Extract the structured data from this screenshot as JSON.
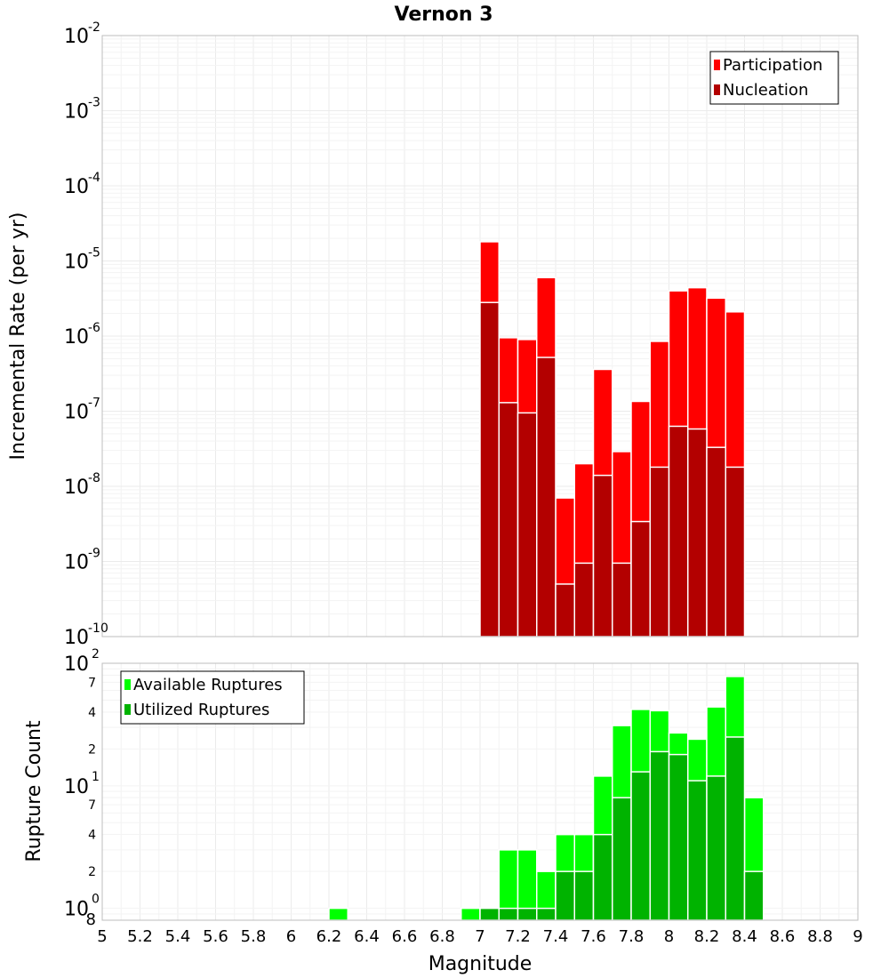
{
  "chart_data": [
    {
      "type": "bar",
      "title": "Vernon 3",
      "ylabel": "Incremental Rate (per yr)",
      "xlabel": "",
      "yscale": "log",
      "ylim": [
        1e-10,
        0.01
      ],
      "xlim": [
        5,
        9
      ],
      "bin_width": 0.1,
      "y_tick_exponents": [
        -10,
        -9,
        -8,
        -7,
        -6,
        -5,
        -4,
        -3,
        -2
      ],
      "y_tick_base": "10",
      "legend": {
        "location": "top-right",
        "entries": [
          "Participation",
          "Nucleation"
        ]
      },
      "series": [
        {
          "name": "Participation",
          "color": "#ff0000",
          "x": [
            7.05,
            7.15,
            7.25,
            7.35,
            7.45,
            7.55,
            7.65,
            7.75,
            7.85,
            7.95,
            8.05,
            8.15,
            8.25,
            8.35
          ],
          "values": [
            1.8e-05,
            9.5e-07,
            9e-07,
            6e-06,
            7e-09,
            2e-08,
            3.6e-07,
            2.9e-08,
            1.35e-07,
            8.5e-07,
            4e-06,
            4.4e-06,
            3.2e-06,
            2.1e-06
          ]
        },
        {
          "name": "Nucleation",
          "color": "#b30000",
          "x": [
            7.05,
            7.15,
            7.25,
            7.35,
            7.45,
            7.55,
            7.65,
            7.75,
            7.85,
            7.95,
            8.05,
            8.15,
            8.25,
            8.35
          ],
          "values": [
            2.8e-06,
            1.3e-07,
            9.5e-08,
            5.2e-07,
            5e-10,
            9.5e-10,
            1.4e-08,
            9.5e-10,
            3.4e-09,
            1.8e-08,
            6.3e-08,
            5.8e-08,
            3.3e-08,
            1.8e-08
          ]
        }
      ]
    },
    {
      "type": "bar",
      "title": "",
      "xlabel": "Magnitude",
      "ylabel": "Rupture Count",
      "yscale": "log",
      "ylim": [
        0.8,
        100
      ],
      "xlim": [
        5,
        9
      ],
      "bin_width": 0.1,
      "x_ticks": [
        "5",
        "5.2",
        "5.4",
        "5.6",
        "5.8",
        "6",
        "6.2",
        "6.4",
        "6.6",
        "6.8",
        "7",
        "7.2",
        "7.4",
        "7.6",
        "7.8",
        "8",
        "8.2",
        "8.4",
        "8.6",
        "8.8",
        "9"
      ],
      "y_major_ticks": [
        {
          "value": 1,
          "base": "10",
          "exp": "0"
        },
        {
          "value": 10,
          "base": "10",
          "exp": "1"
        },
        {
          "value": 100,
          "base": "10",
          "exp": "2"
        }
      ],
      "y_minor_ticks": [
        {
          "value": 0.8,
          "label": "8"
        },
        {
          "value": 2,
          "label": "2"
        },
        {
          "value": 4,
          "label": "4"
        },
        {
          "value": 7,
          "label": "7"
        },
        {
          "value": 20,
          "label": "2"
        },
        {
          "value": 40,
          "label": "4"
        },
        {
          "value": 70,
          "label": "7"
        }
      ],
      "legend": {
        "location": "top-left",
        "entries": [
          "Available Ruptures",
          "Utilized Ruptures"
        ]
      },
      "series": [
        {
          "name": "Available Ruptures",
          "color": "#00ff00",
          "x": [
            6.25,
            6.95,
            7.05,
            7.15,
            7.25,
            7.35,
            7.45,
            7.55,
            7.65,
            7.75,
            7.85,
            7.95,
            8.05,
            8.15,
            8.25,
            8.35,
            8.45
          ],
          "values": [
            1,
            1,
            1,
            3,
            3,
            2,
            4,
            4,
            12,
            31,
            42,
            41,
            27,
            24,
            44,
            78,
            8
          ]
        },
        {
          "name": "Utilized Ruptures",
          "color": "#00b300",
          "x": [
            7.05,
            7.15,
            7.25,
            7.35,
            7.45,
            7.55,
            7.65,
            7.75,
            7.85,
            7.95,
            8.05,
            8.15,
            8.25,
            8.35,
            8.45
          ],
          "values": [
            1,
            1,
            1,
            1,
            2,
            2,
            4,
            8,
            13,
            19,
            18,
            11,
            12,
            25,
            2
          ]
        }
      ]
    }
  ]
}
